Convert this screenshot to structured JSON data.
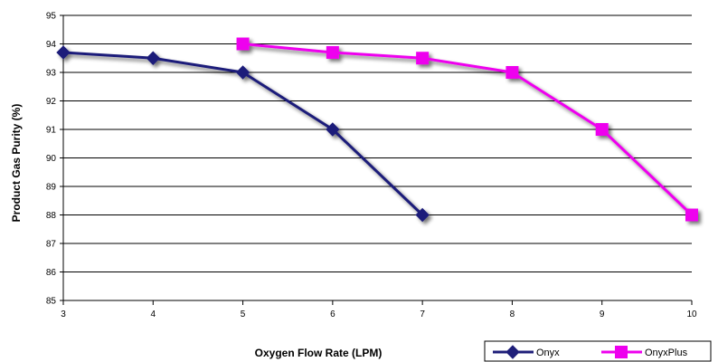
{
  "chart_data": {
    "type": "line",
    "title": "",
    "xlabel": "Oxygen Flow Rate (LPM)",
    "ylabel": "Product Gas Purity (%)",
    "xlim": [
      3,
      10
    ],
    "ylim": [
      85,
      95
    ],
    "x_ticks": [
      3,
      4,
      5,
      6,
      7,
      8,
      9,
      10
    ],
    "y_ticks": [
      85,
      86,
      87,
      88,
      89,
      90,
      91,
      92,
      93,
      94,
      95
    ],
    "grid": "horizontal",
    "legend_position": "bottom-right",
    "series": [
      {
        "name": "Onyx",
        "color": "#1f1f7a",
        "marker": "diamond",
        "x": [
          3,
          4,
          5,
          6,
          7
        ],
        "y": [
          93.7,
          93.5,
          93.0,
          91.0,
          88.0
        ]
      },
      {
        "name": "OnyxPlus",
        "color": "#ee00ee",
        "marker": "square",
        "x": [
          5,
          6,
          7,
          8,
          9,
          10
        ],
        "y": [
          94.0,
          93.7,
          93.5,
          93.0,
          91.0,
          88.0
        ]
      }
    ]
  }
}
